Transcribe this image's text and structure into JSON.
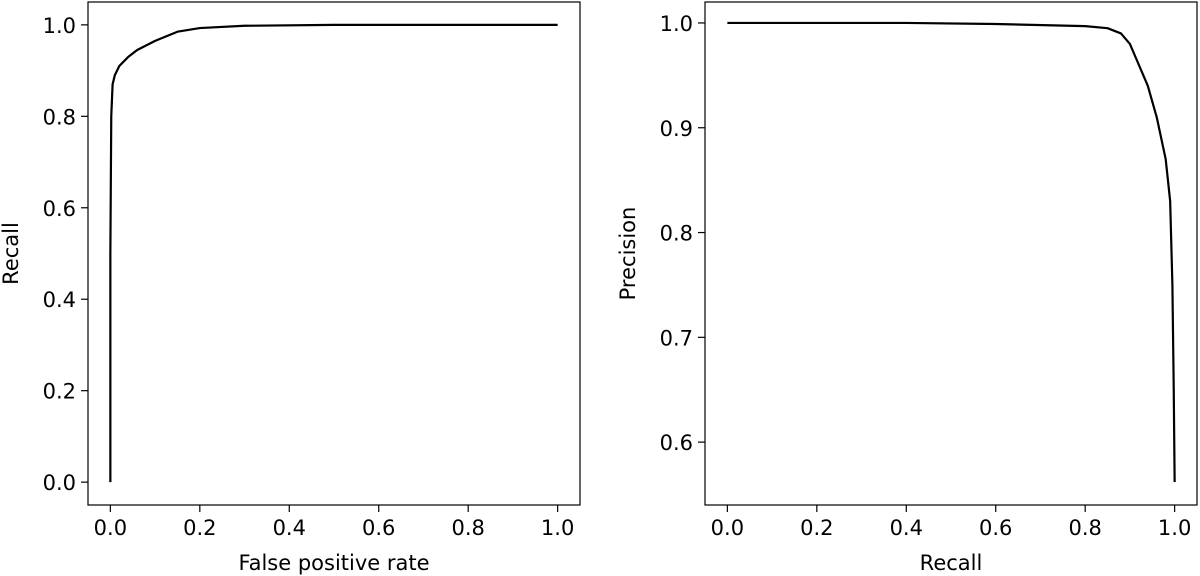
{
  "chart_data": [
    {
      "type": "line",
      "xlabel": "False positive rate",
      "ylabel": "Recall",
      "xlim": [
        -0.05,
        1.05
      ],
      "ylim": [
        -0.05,
        1.05
      ],
      "xticks": [
        {
          "value": 0,
          "label": "0.0"
        },
        0.2,
        0.4,
        0.6,
        0.8,
        {
          "value": 1,
          "label": "1.0"
        }
      ],
      "yticks": [
        {
          "value": 0,
          "label": "0.0"
        },
        0.2,
        0.4,
        0.6,
        0.8,
        {
          "value": 1,
          "label": "1.0"
        }
      ],
      "color": "#000000",
      "x": [
        0,
        0,
        0.002,
        0.005,
        0.01,
        0.02,
        0.04,
        0.06,
        0.1,
        0.15,
        0.2,
        0.3,
        0.5,
        1.0
      ],
      "values": [
        0,
        0.5,
        0.8,
        0.87,
        0.89,
        0.91,
        0.93,
        0.945,
        0.965,
        0.985,
        0.993,
        0.998,
        1.0,
        1.0
      ]
    },
    {
      "type": "line",
      "xlabel": "Recall",
      "ylabel": "Precision",
      "xlim": [
        -0.05,
        1.05
      ],
      "ylim": [
        0.54,
        1.02
      ],
      "xticks": [
        {
          "value": 0,
          "label": "0.0"
        },
        0.2,
        0.4,
        0.6,
        0.8,
        {
          "value": 1,
          "label": "1.0"
        }
      ],
      "yticks": [
        0.6,
        0.7,
        0.8,
        0.9,
        {
          "value": 1,
          "label": "1.0"
        }
      ],
      "color": "#000000",
      "x": [
        0,
        0.2,
        0.4,
        0.6,
        0.8,
        0.85,
        0.88,
        0.9,
        0.92,
        0.94,
        0.96,
        0.98,
        0.99,
        0.995,
        0.998,
        1.0
      ],
      "values": [
        1.0,
        1.0,
        1.0,
        0.999,
        0.997,
        0.995,
        0.99,
        0.98,
        0.96,
        0.94,
        0.91,
        0.87,
        0.83,
        0.75,
        0.65,
        0.562
      ]
    }
  ]
}
